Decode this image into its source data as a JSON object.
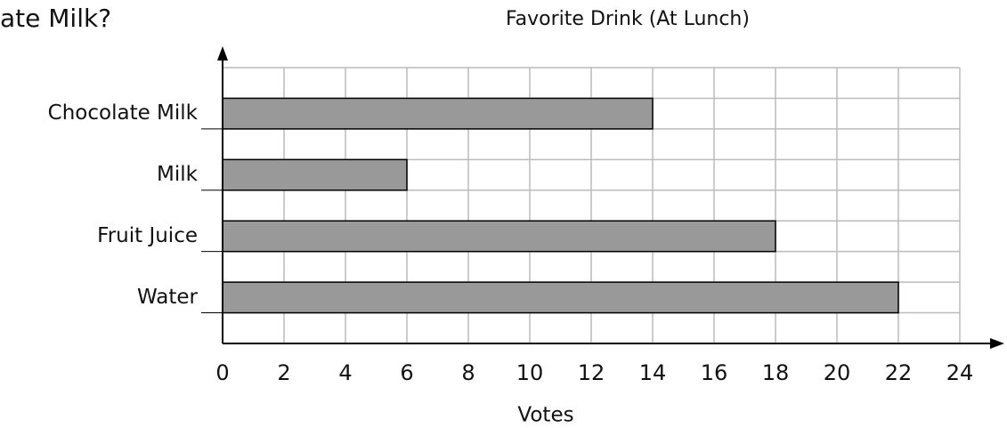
{
  "page_text": "ate Milk?",
  "chart_data": {
    "type": "bar",
    "orientation": "horizontal",
    "title": "Favorite Drink (At Lunch)",
    "x_label": "Votes",
    "categories": [
      "Chocolate Milk",
      "Milk",
      "Fruit Juice",
      "Water"
    ],
    "values": [
      14,
      6,
      18,
      22
    ],
    "color": "#999999",
    "xlim": [
      0,
      24
    ],
    "xticks": [
      0,
      2,
      4,
      6,
      8,
      10,
      12,
      14,
      16,
      18,
      20,
      22,
      24
    ],
    "grid": true
  }
}
